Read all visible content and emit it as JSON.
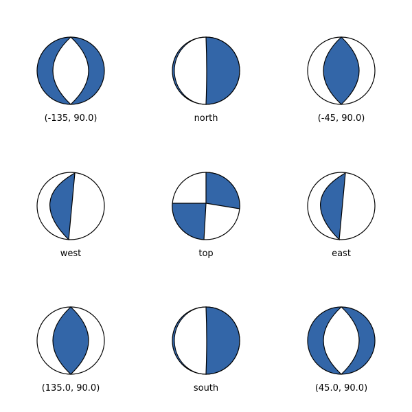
{
  "colors": {
    "fill": "#3366a8",
    "stroke": "#000000",
    "background": "#ffffff"
  },
  "beachballs": [
    {
      "label": "(-135, 90.0)",
      "view": "vertical-lens",
      "lens": "white"
    },
    {
      "label": "north",
      "view": "split-right",
      "fill_side": "right"
    },
    {
      "label": "(-45, 90.0)",
      "view": "vertical-lens",
      "lens": "blue"
    },
    {
      "label": "west",
      "view": "split-left",
      "fill_side": "left"
    },
    {
      "label": "top",
      "view": "quadrants",
      "blue_quadrants": [
        "upper-right",
        "lower-left"
      ]
    },
    {
      "label": "east",
      "view": "split-left",
      "fill_side": "left"
    },
    {
      "label": "(135.0, 90.0)",
      "view": "vertical-lens",
      "lens": "blue"
    },
    {
      "label": "south",
      "view": "split-right",
      "fill_side": "right"
    },
    {
      "label": "(45.0, 90.0)",
      "view": "vertical-lens",
      "lens": "white"
    }
  ]
}
